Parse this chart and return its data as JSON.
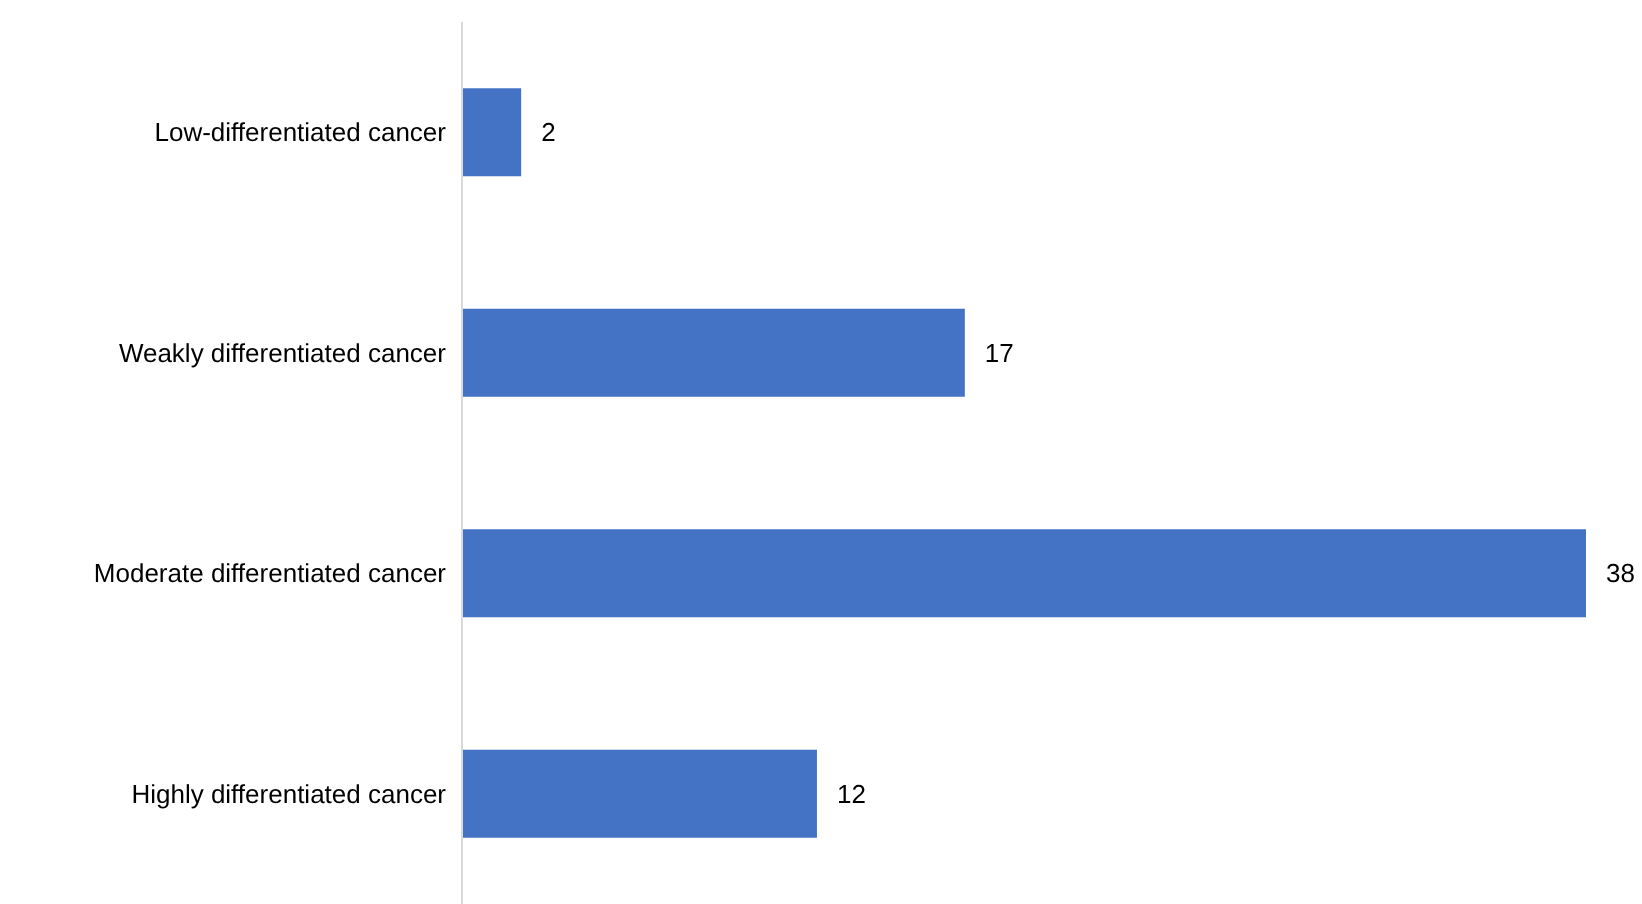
{
  "chart_data": {
    "type": "bar",
    "orientation": "horizontal",
    "categories": [
      "Low-differentiated cancer",
      "Weakly differentiated cancer",
      "Moderate differentiated cancer",
      "Highly differentiated cancer"
    ],
    "values": [
      2,
      17,
      38,
      12
    ],
    "color": "#4472c4",
    "data_labels": true
  }
}
